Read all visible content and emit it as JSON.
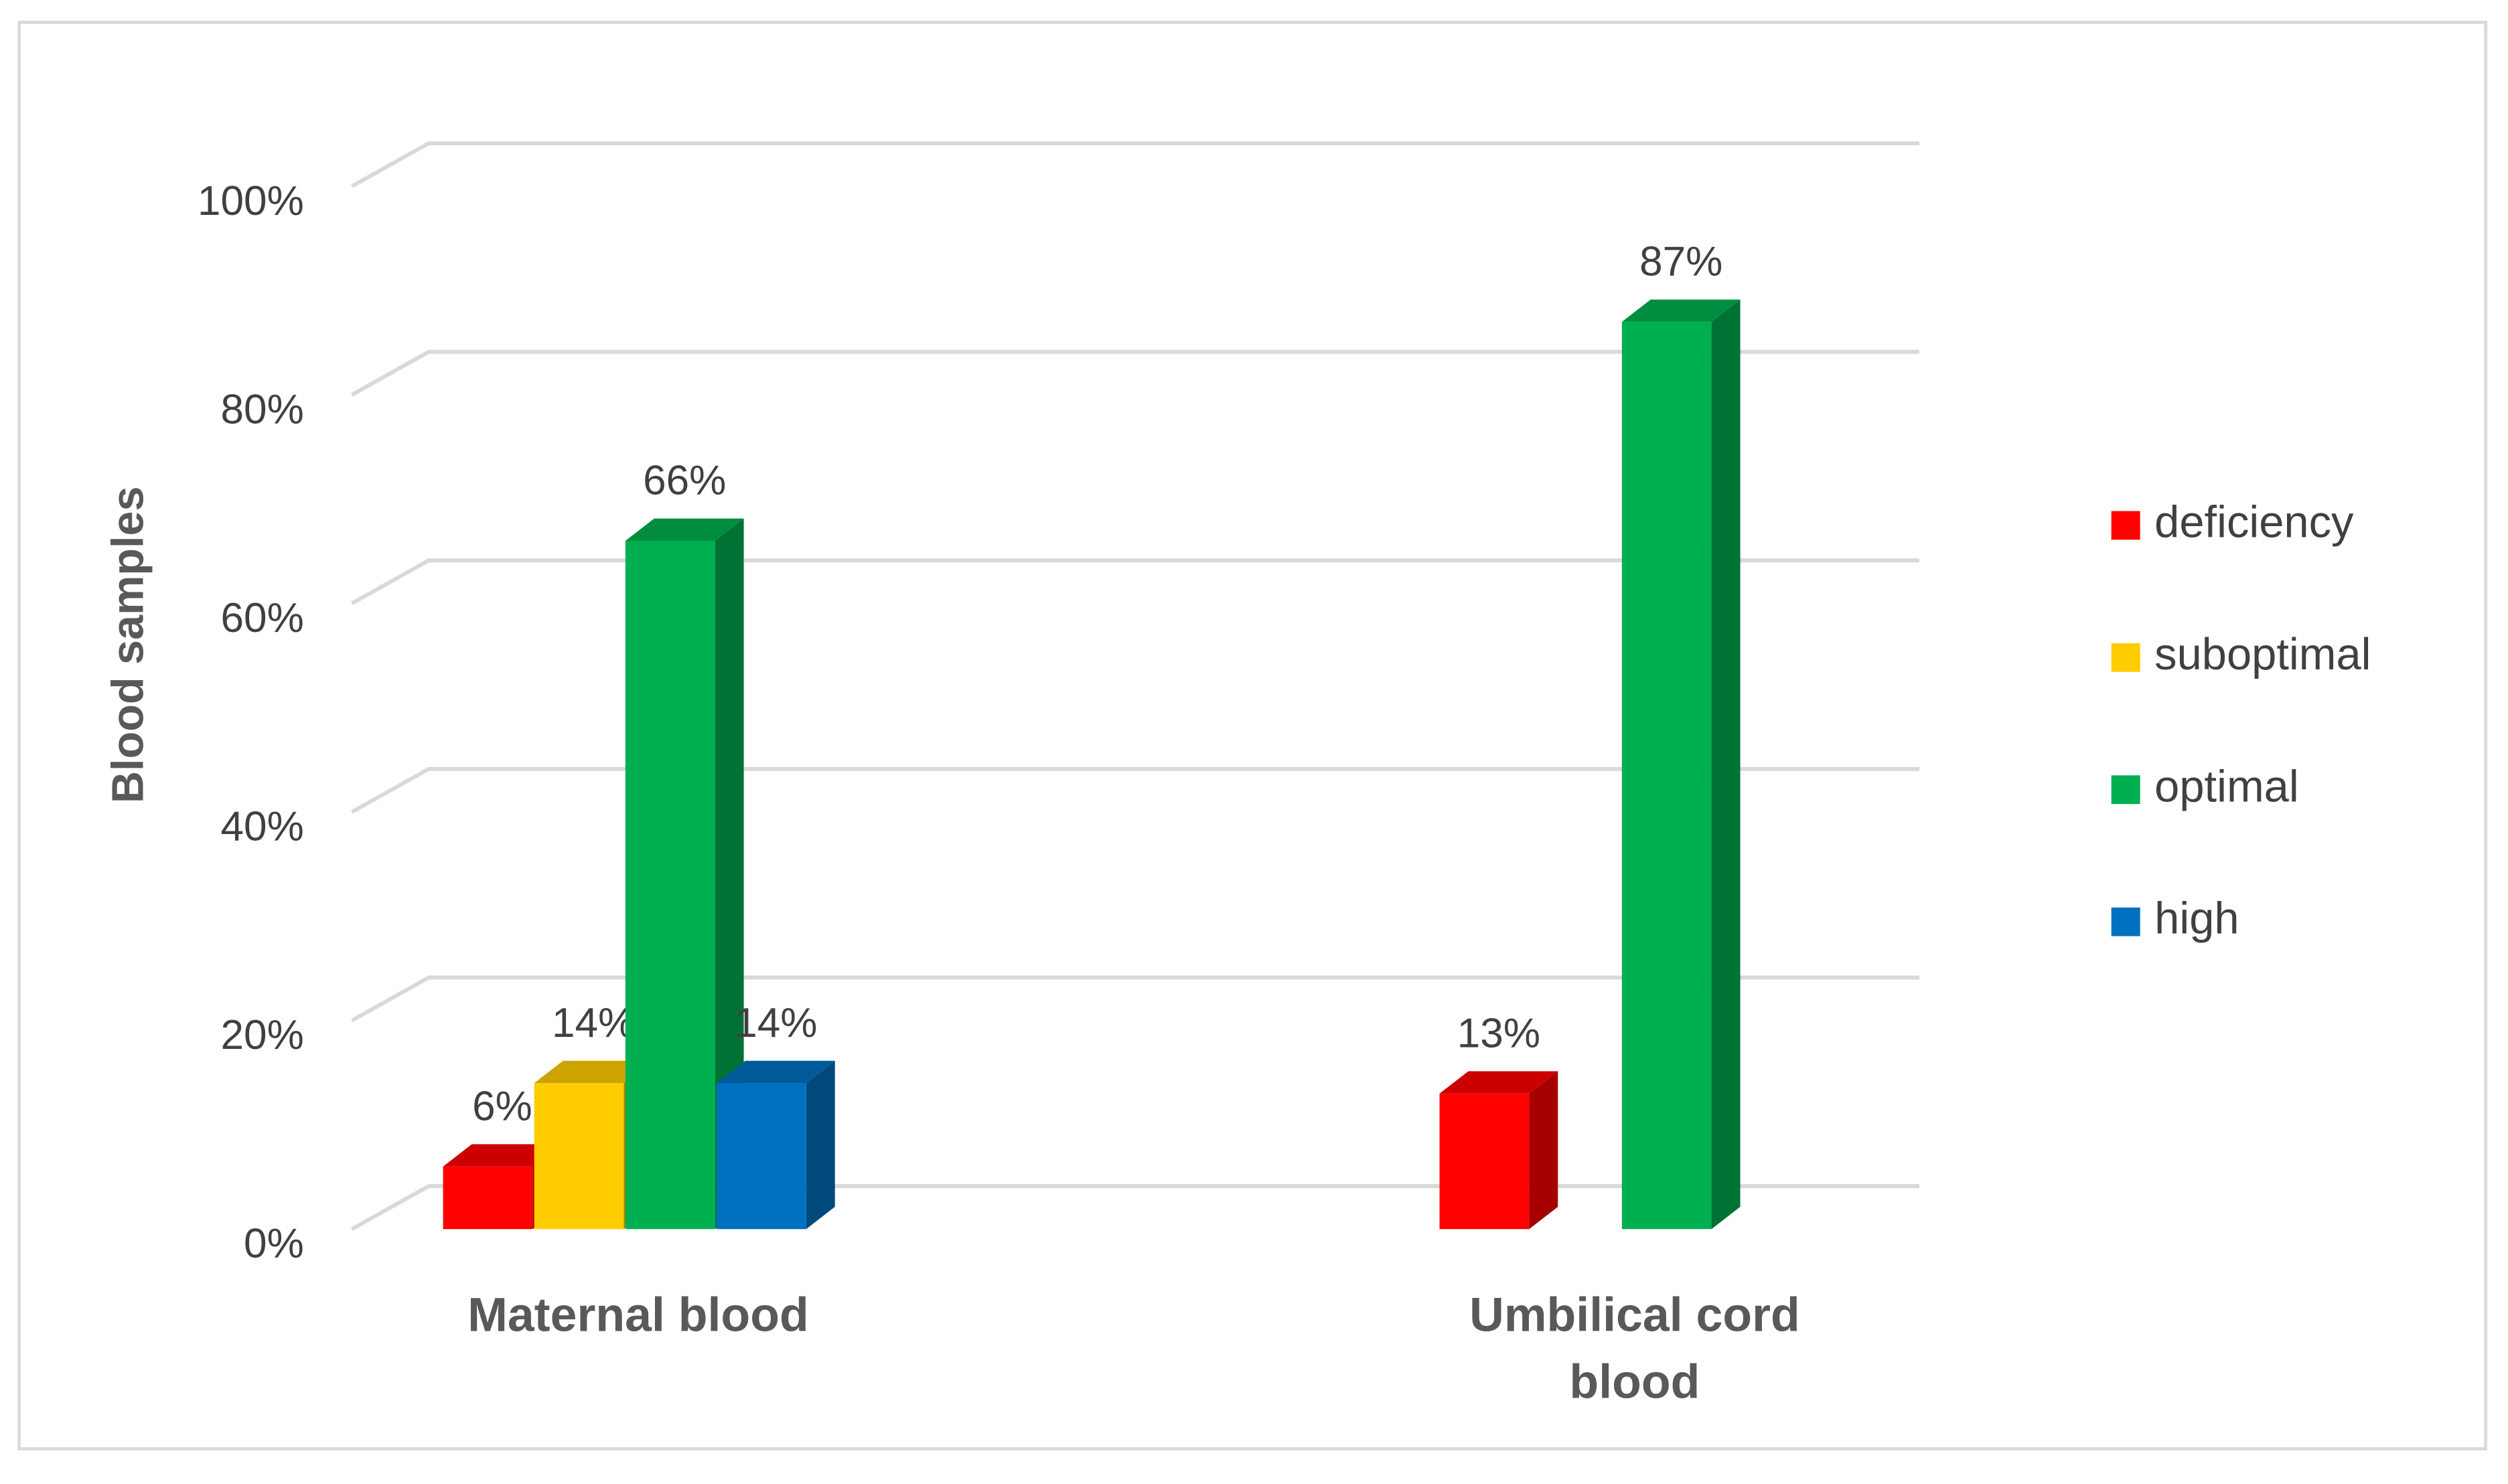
{
  "chart_data": {
    "type": "bar3d",
    "y_label": "Blood samples",
    "categories": [
      "Maternal blood",
      "Umbilical cord blood"
    ],
    "series": [
      {
        "name": "deficiency",
        "color": "#ff0000",
        "values": [
          6,
          13
        ],
        "value_labels": [
          "6%",
          "13%"
        ]
      },
      {
        "name": "suboptimal",
        "color": "#ffcc00",
        "values": [
          14,
          null
        ],
        "value_labels": [
          "14%",
          null
        ]
      },
      {
        "name": "optimal",
        "color": "#00b050",
        "values": [
          66,
          87
        ],
        "value_labels": [
          "66%",
          "87%"
        ]
      },
      {
        "name": "high",
        "color": "#0070c0",
        "values": [
          14,
          null
        ],
        "value_labels": [
          "14%",
          null
        ]
      }
    ],
    "ylim": [
      0,
      100
    ],
    "yticks": [
      {
        "value": 0,
        "label": "0%"
      },
      {
        "value": 20,
        "label": "20%"
      },
      {
        "value": 40,
        "label": "40%"
      },
      {
        "value": 60,
        "label": "60%"
      },
      {
        "value": 80,
        "label": "80%"
      },
      {
        "value": 100,
        "label": "100%"
      }
    ],
    "grid": true,
    "legend": "right"
  }
}
